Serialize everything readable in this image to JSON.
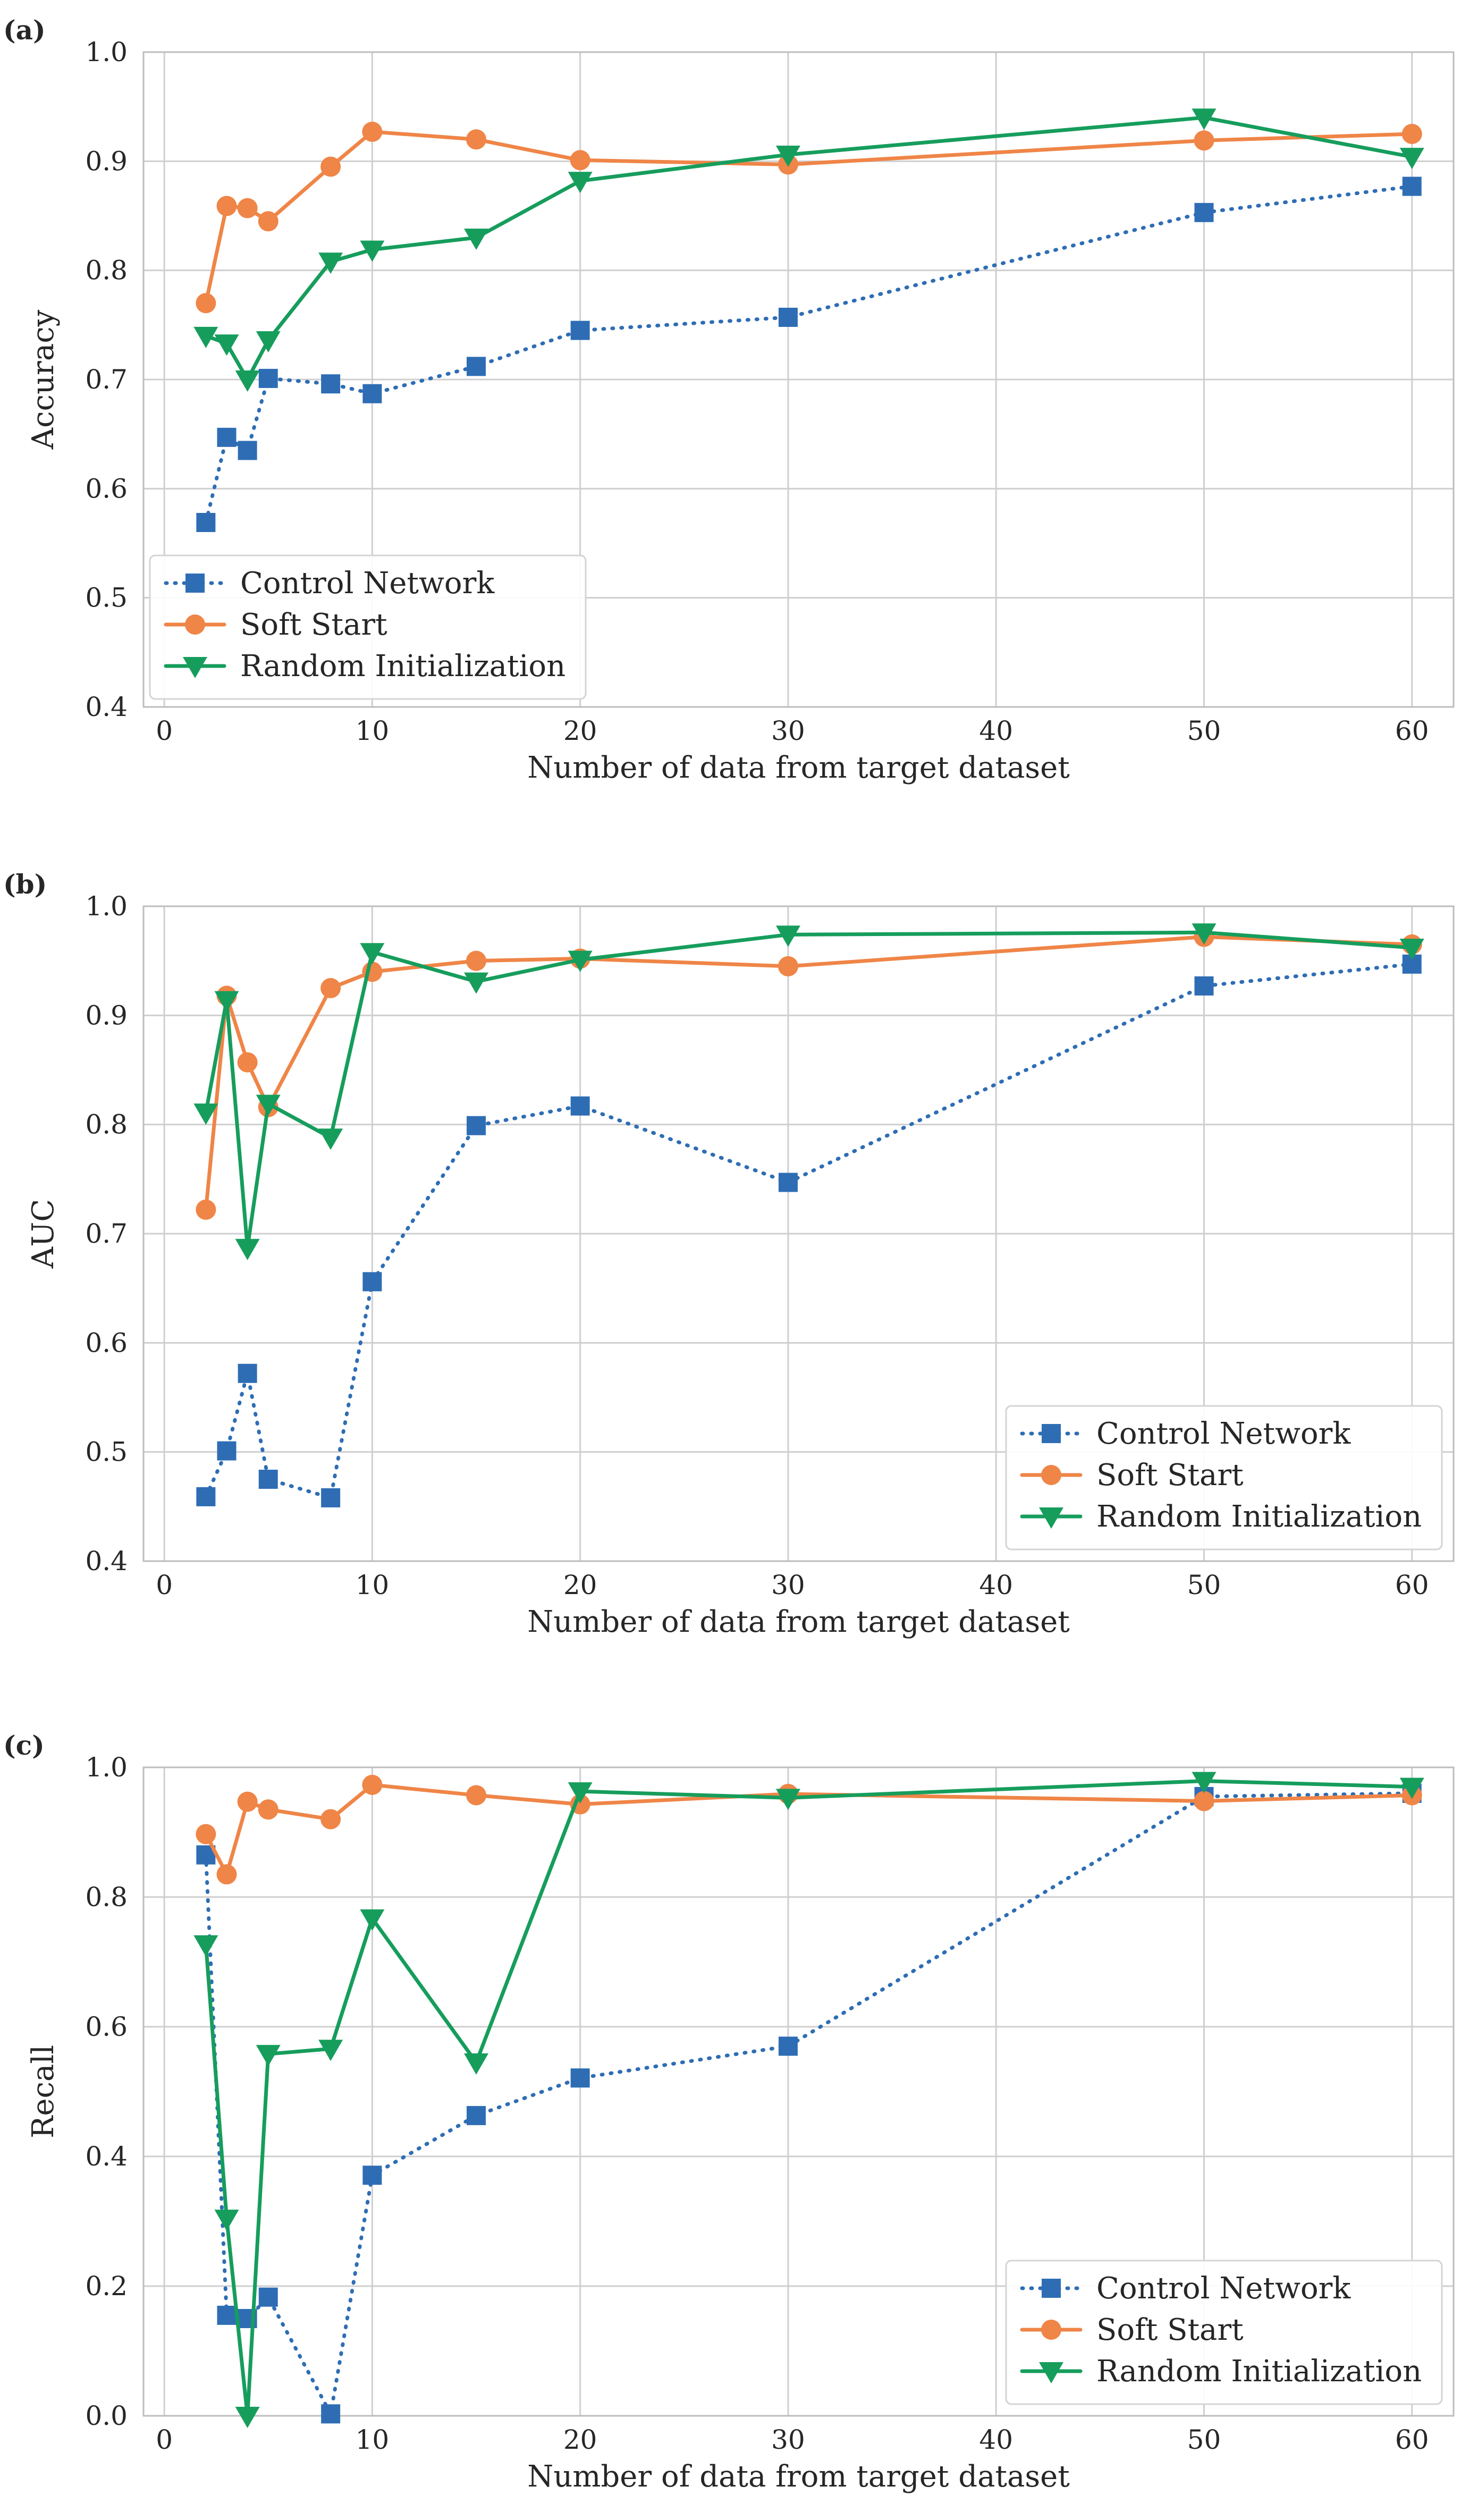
{
  "colors": {
    "control": "#2e6db4",
    "soft": "#ef8547",
    "random": "#169d5c",
    "grid": "#cfcfcf",
    "frame": "#bdbdbd"
  },
  "chart_data": [
    {
      "panel": "(a)",
      "type": "line",
      "ylabel": "Accuracy",
      "xlabel": "Number of data from target dataset",
      "xlim": [
        -1,
        62
      ],
      "ylim": [
        0.4,
        1.0
      ],
      "xticks": [
        0,
        10,
        20,
        30,
        40,
        50,
        60
      ],
      "xtick_labels": [
        "0",
        "10",
        "20",
        "30",
        "40",
        "50",
        "60"
      ],
      "yticks": [
        0.4,
        0.5,
        0.6,
        0.7,
        0.8,
        0.9,
        1.0
      ],
      "ytick_labels": [
        "0.4",
        "0.5",
        "0.6",
        "0.7",
        "0.8",
        "0.9",
        "1.0"
      ],
      "legend_position": "lower-left",
      "x": [
        2,
        3,
        4,
        5,
        8,
        10,
        15,
        20,
        30,
        50,
        60
      ],
      "series": [
        {
          "name": "Control Network",
          "key": "control",
          "marker": "square",
          "dash": "dotted",
          "values": [
            0.569,
            0.647,
            0.635,
            0.701,
            0.696,
            0.687,
            0.712,
            0.745,
            0.757,
            0.853,
            0.877
          ]
        },
        {
          "name": "Soft Start",
          "key": "soft",
          "marker": "circle",
          "dash": "solid",
          "values": [
            0.77,
            0.859,
            0.857,
            0.845,
            0.895,
            0.927,
            0.92,
            0.901,
            0.897,
            0.919,
            0.925
          ]
        },
        {
          "name": "Random Initialization",
          "key": "random",
          "marker": "triangle-down",
          "dash": "solid",
          "values": [
            0.74,
            0.733,
            0.7,
            0.736,
            0.808,
            0.819,
            0.83,
            0.882,
            0.906,
            0.94,
            0.904
          ]
        }
      ]
    },
    {
      "panel": "(b)",
      "type": "line",
      "ylabel": "AUC",
      "xlabel": "Number of data from target dataset",
      "xlim": [
        -1,
        62
      ],
      "ylim": [
        0.4,
        1.0
      ],
      "xticks": [
        0,
        10,
        20,
        30,
        40,
        50,
        60
      ],
      "xtick_labels": [
        "0",
        "10",
        "20",
        "30",
        "40",
        "50",
        "60"
      ],
      "yticks": [
        0.4,
        0.5,
        0.6,
        0.7,
        0.8,
        0.9,
        1.0
      ],
      "ytick_labels": [
        "0.4",
        "0.5",
        "0.6",
        "0.7",
        "0.8",
        "0.9",
        "1.0"
      ],
      "legend_position": "lower-right",
      "x": [
        2,
        3,
        4,
        5,
        8,
        10,
        15,
        20,
        30,
        50,
        60
      ],
      "series": [
        {
          "name": "Control Network",
          "key": "control",
          "marker": "square",
          "dash": "dotted",
          "values": [
            0.459,
            0.501,
            0.572,
            0.475,
            0.458,
            0.656,
            0.799,
            0.817,
            0.747,
            0.927,
            0.947
          ]
        },
        {
          "name": "Soft Start",
          "key": "soft",
          "marker": "circle",
          "dash": "solid",
          "values": [
            0.722,
            0.918,
            0.857,
            0.816,
            0.925,
            0.94,
            0.95,
            0.952,
            0.945,
            0.972,
            0.965
          ]
        },
        {
          "name": "Random Initialization",
          "key": "random",
          "marker": "triangle-down",
          "dash": "solid",
          "values": [
            0.811,
            0.914,
            0.687,
            0.819,
            0.788,
            0.958,
            0.931,
            0.951,
            0.974,
            0.976,
            0.962
          ]
        }
      ]
    },
    {
      "panel": "(c)",
      "type": "line",
      "ylabel": "Recall",
      "xlabel": "Number of data from target dataset",
      "xlim": [
        -1,
        62
      ],
      "ylim": [
        0.0,
        1.0
      ],
      "xticks": [
        0,
        10,
        20,
        30,
        40,
        50,
        60
      ],
      "xtick_labels": [
        "0",
        "10",
        "20",
        "30",
        "40",
        "50",
        "60"
      ],
      "yticks": [
        0.0,
        0.2,
        0.4,
        0.6,
        0.8,
        1.0
      ],
      "ytick_labels": [
        "0.0",
        "0.2",
        "0.4",
        "0.6",
        "0.8",
        "1.0"
      ],
      "legend_position": "lower-right",
      "x": [
        2,
        3,
        4,
        5,
        8,
        10,
        15,
        20,
        30,
        50,
        60
      ],
      "series": [
        {
          "name": "Control Network",
          "key": "control",
          "marker": "square",
          "dash": "dotted",
          "values": [
            0.865,
            0.155,
            0.15,
            0.183,
            0.003,
            0.371,
            0.463,
            0.521,
            0.57,
            0.955,
            0.96
          ]
        },
        {
          "name": "Soft Start",
          "key": "soft",
          "marker": "circle",
          "dash": "solid",
          "values": [
            0.897,
            0.835,
            0.947,
            0.935,
            0.92,
            0.973,
            0.957,
            0.943,
            0.959,
            0.948,
            0.957
          ]
        },
        {
          "name": "Random Initialization",
          "key": "random",
          "marker": "triangle-down",
          "dash": "solid",
          "values": [
            0.727,
            0.304,
            0.0,
            0.558,
            0.566,
            0.767,
            0.545,
            0.963,
            0.953,
            0.979,
            0.97
          ]
        }
      ]
    }
  ]
}
